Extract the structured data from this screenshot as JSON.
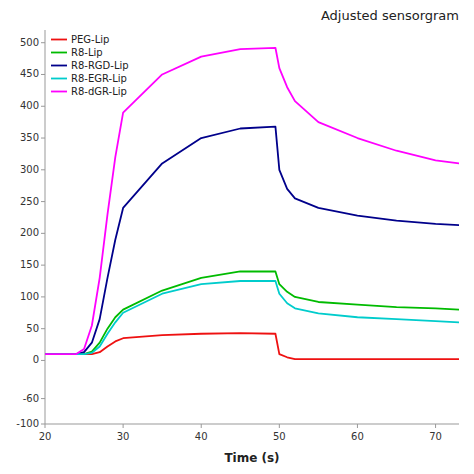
{
  "chart_data": {
    "type": "line",
    "title": "Adjusted sensorgram",
    "xlabel": "Time (s)",
    "x": [
      20,
      24,
      25,
      26,
      27,
      28,
      29,
      30,
      35,
      40,
      45,
      49.5,
      50,
      51,
      52,
      55,
      60,
      65,
      70,
      73
    ],
    "series": [
      {
        "name": "PEG-Lip",
        "color": "#EE1111",
        "values": [
          10,
          10,
          10,
          10,
          13,
          22,
          30,
          35,
          40,
          42,
          43,
          42,
          10,
          5,
          2,
          2,
          2,
          2,
          2,
          2
        ]
      },
      {
        "name": "R8-Lip",
        "color": "#00BB00",
        "values": [
          10,
          10,
          10,
          14,
          28,
          50,
          68,
          80,
          110,
          130,
          140,
          140,
          120,
          108,
          100,
          92,
          88,
          84,
          82,
          80
        ]
      },
      {
        "name": "R8-RGD-Lip",
        "color": "#00008B",
        "values": [
          10,
          10,
          13,
          28,
          65,
          130,
          190,
          240,
          310,
          350,
          365,
          368,
          300,
          270,
          255,
          240,
          228,
          220,
          215,
          213
        ]
      },
      {
        "name": "R8-EGR-Lip",
        "color": "#00CCCC",
        "values": [
          10,
          10,
          10,
          12,
          22,
          42,
          60,
          75,
          105,
          120,
          125,
          125,
          105,
          90,
          82,
          74,
          68,
          65,
          62,
          60
        ]
      },
      {
        "name": "R8-dGR-Lip",
        "color": "#FF00FF",
        "values": [
          10,
          10,
          18,
          55,
          130,
          230,
          320,
          390,
          450,
          478,
          490,
          492,
          460,
          430,
          408,
          375,
          350,
          330,
          315,
          310
        ]
      }
    ],
    "xlim": [
      20,
      73
    ],
    "ylim": [
      -100,
      520
    ],
    "xticks": [
      20,
      30,
      40,
      50,
      60,
      70
    ],
    "yticks": [
      -100,
      -60,
      0,
      50,
      100,
      150,
      200,
      250,
      300,
      350,
      400,
      450,
      500
    ],
    "legend": "upper left",
    "grid": false
  }
}
